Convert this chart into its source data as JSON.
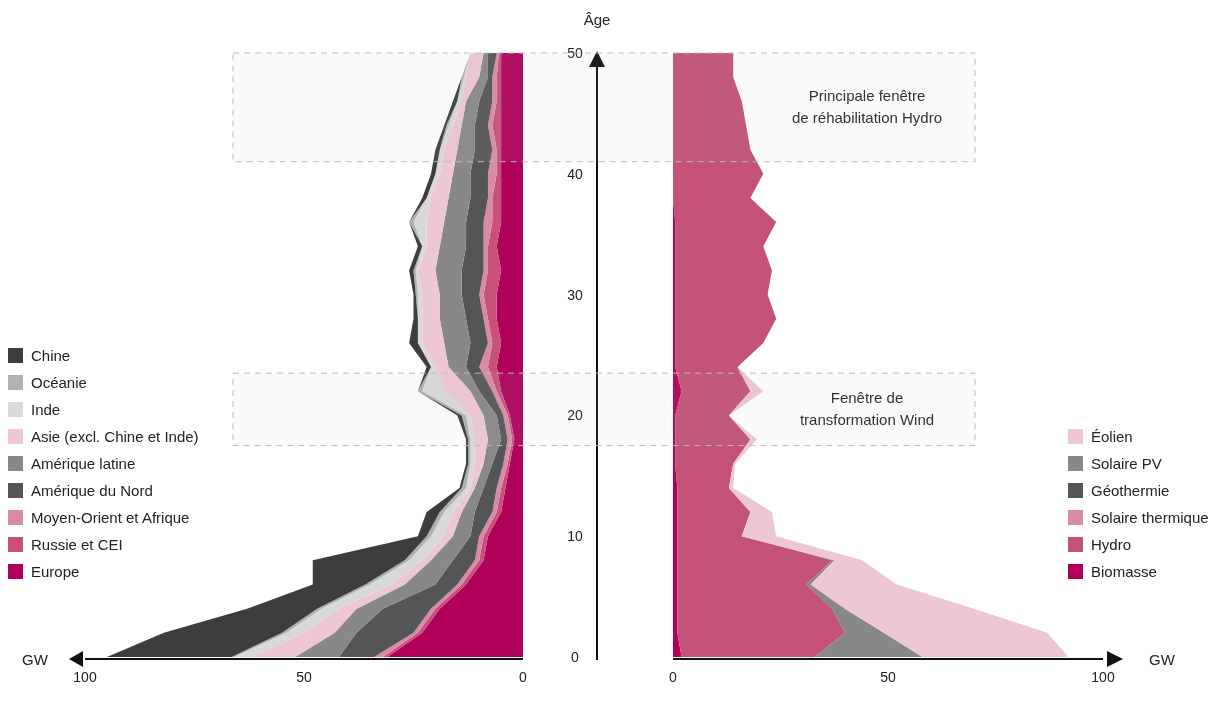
{
  "chart_data": [
    {
      "type": "area",
      "stacked": true,
      "orientation": "horizontal",
      "xlabel": "GW",
      "ylabel": "Âge",
      "xlim": [
        100,
        0
      ],
      "xticks": [
        100,
        50,
        0
      ],
      "ylim": [
        0,
        50
      ],
      "yticks": [
        0,
        10,
        20,
        30,
        40,
        50
      ],
      "legend": "left",
      "tick_labels": "xy",
      "x": [
        0,
        2,
        4,
        6,
        8,
        10,
        12,
        14,
        16,
        18,
        20,
        22,
        24,
        26,
        28,
        30,
        32,
        34,
        36,
        38,
        40,
        42,
        44,
        46,
        48,
        50
      ],
      "series": [
        {
          "name": "Europe",
          "color": "#b0005a",
          "values": [
            31,
            23,
            19,
            13,
            9,
            8,
            5,
            4,
            3,
            2,
            3,
            5,
            6,
            5,
            6,
            6,
            5,
            6,
            5,
            5,
            5,
            5,
            5,
            5,
            5,
            5
          ]
        },
        {
          "name": "Russie et CEI",
          "color": "#c8507a",
          "values": [
            1,
            1,
            1,
            1,
            1,
            1,
            1,
            1,
            0.5,
            0.5,
            0.5,
            1,
            2,
            2,
            2,
            3,
            3,
            2,
            2,
            2,
            1,
            1,
            2,
            1,
            1,
            0.5
          ]
        },
        {
          "name": "Moyen-Orient et Afrique",
          "color": "#d98aa6",
          "values": [
            2,
            1,
            1,
            1,
            1,
            1,
            1,
            1,
            1,
            1,
            1,
            1,
            2,
            1,
            1,
            1,
            1,
            1,
            2,
            1,
            2,
            1,
            1,
            1,
            1,
            0.5
          ]
        },
        {
          "name": "Amérique du Nord",
          "color": "#555557",
          "values": [
            8,
            13,
            11,
            5,
            5,
            2,
            4,
            3,
            2.5,
            1.5,
            1.5,
            3,
            3,
            4,
            4,
            4,
            5,
            4,
            4,
            4,
            4,
            4,
            3,
            3,
            1,
            2
          ]
        },
        {
          "name": "Amérique latine",
          "color": "#888889",
          "values": [
            10,
            5,
            6,
            7,
            5,
            4,
            3,
            2,
            2,
            3,
            3,
            2,
            4,
            6,
            6,
            5,
            6,
            6,
            5,
            5,
            4,
            4,
            3,
            3,
            2,
            1
          ]
        },
        {
          "name": "Asie (excl. Chine et Inde)",
          "color": "#edc7d3",
          "values": [
            10,
            7,
            4,
            3,
            2,
            2,
            2,
            1,
            2,
            3,
            3,
            6,
            3,
            5,
            4,
            4,
            4,
            3,
            4,
            4,
            3,
            3,
            2,
            1,
            3,
            3
          ]
        },
        {
          "name": "Inde",
          "color": "#d9d9d9",
          "values": [
            4,
            4,
            4,
            5,
            3,
            3,
            2,
            1,
            1,
            1,
            1,
            5,
            1,
            1,
            1,
            1,
            0.5,
            1,
            3,
            1,
            1,
            1,
            1,
            1,
            0.5,
            0
          ]
        },
        {
          "name": "Océanie",
          "color": "#b1b1b1",
          "values": [
            0.5,
            1,
            1,
            1,
            1,
            1,
            1,
            1,
            0.5,
            0.5,
            1,
            1,
            0,
            0,
            0,
            0.5,
            0.5,
            0,
            1,
            0,
            0,
            0,
            0.5,
            0,
            0.5,
            0
          ]
        },
        {
          "name": "Chine",
          "color": "#3d3d3f",
          "values": [
            28.5,
            27,
            16,
            12,
            21,
            2,
            3,
            0.5,
            0.5,
            0.5,
            1,
            0,
            1,
            2,
            1,
            0.5,
            1,
            1,
            0,
            1,
            1,
            1,
            0.5,
            1,
            0,
            0
          ]
        }
      ]
    },
    {
      "type": "area",
      "stacked": true,
      "orientation": "horizontal",
      "xlabel": "GW",
      "xlim": [
        0,
        100
      ],
      "xticks": [
        0,
        50,
        100
      ],
      "ylim": [
        0,
        50
      ],
      "legend": "right",
      "tick_labels": "x",
      "x": [
        0,
        2,
        4,
        6,
        8,
        10,
        12,
        14,
        16,
        18,
        20,
        22,
        24,
        26,
        28,
        30,
        32,
        34,
        36,
        38,
        40,
        42,
        44,
        46,
        48,
        50
      ],
      "bands": [
        {
          "axis": "y",
          "from": 41,
          "to": 50,
          "label": "Principale fenêtre\nde réhabilitation Hydro",
          "color": "#bbbbbb"
        },
        {
          "axis": "y",
          "from": 17.5,
          "to": 23.5,
          "label": "Fenêtre de\ntransformation Wind",
          "color": "#bbbbbb"
        }
      ],
      "series": [
        {
          "name": "Biomasse",
          "color": "#b0005a",
          "values": [
            2,
            1,
            1,
            1,
            1,
            1,
            1,
            1,
            0.5,
            0.5,
            0.5,
            2,
            0.5,
            0.5,
            0.5,
            0.5,
            0.5,
            0.5,
            0.5,
            0,
            0,
            0,
            0,
            0,
            0,
            0
          ]
        },
        {
          "name": "Hydro",
          "color": "#c35178",
          "values": [
            31,
            39,
            36,
            30,
            36,
            15,
            17,
            12,
            13.5,
            17.5,
            12.5,
            16,
            14.5,
            20.5,
            23.5,
            21.5,
            22.5,
            20.5,
            23.5,
            18,
            21,
            18,
            17,
            16,
            14,
            14
          ]
        },
        {
          "name": "Solaire thermique",
          "color": "#d98aa6",
          "values": [
            null,
            null,
            null,
            null,
            null,
            null,
            null,
            null,
            null,
            null,
            null,
            null,
            null,
            null,
            null,
            null,
            null,
            null,
            null,
            null,
            null,
            null,
            null,
            null,
            null,
            null
          ]
        },
        {
          "name": "Géothermie",
          "color": "#555557",
          "values": [
            null,
            null,
            null,
            null,
            null,
            null,
            null,
            null,
            null,
            null,
            null,
            null,
            null,
            null,
            null,
            null,
            null,
            null,
            null,
            null,
            null,
            null,
            null,
            null,
            null,
            null
          ]
        },
        {
          "name": "Solaire PV",
          "color": "#888889",
          "values": [
            25,
            9,
            3,
            1,
            0.5,
            0,
            0,
            0,
            0,
            0,
            0,
            0,
            0,
            0,
            0,
            0,
            0,
            0,
            0,
            0,
            0,
            0,
            0,
            0,
            0,
            0
          ]
        },
        {
          "name": "Éolien",
          "color": "#edc7d3",
          "values": [
            34,
            38,
            30,
            20,
            6.5,
            8,
            5,
            1,
            0.5,
            1.5,
            0,
            3,
            0,
            0,
            0,
            0,
            0,
            0,
            0,
            0,
            0,
            0,
            0,
            0,
            0,
            0
          ]
        }
      ]
    }
  ]
}
